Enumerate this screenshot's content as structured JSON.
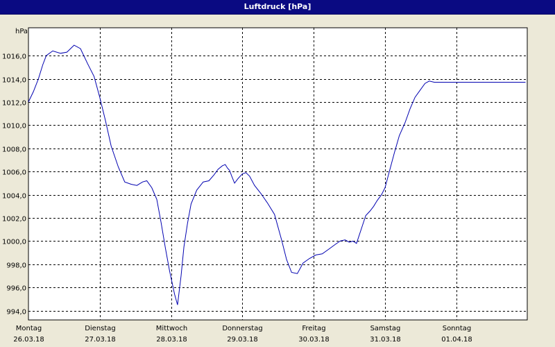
{
  "window": {
    "title": "Luftdruck [hPa]"
  },
  "chart_data": {
    "type": "line",
    "title": "Luftdruck [hPa]",
    "ylabel": "hPa",
    "xlabel": "",
    "ylim": [
      993.2,
      1018.4
    ],
    "yticks": [
      994.0,
      996.0,
      998.0,
      1000.0,
      1002.0,
      1004.0,
      1006.0,
      1008.0,
      1010.0,
      1012.0,
      1014.0,
      1016.0
    ],
    "ytick_labels": [
      "994,0",
      "996,0",
      "998,0",
      "1000,0",
      "1002,0",
      "1004,0",
      "1006,0",
      "1008,0",
      "1010,0",
      "1012,0",
      "1014,0",
      "1016,0"
    ],
    "xlim": [
      0,
      7
    ],
    "x_ticks": [
      {
        "day": "Montag",
        "date": "26.03.18",
        "x": 0
      },
      {
        "day": "Dienstag",
        "date": "27.03.18",
        "x": 1
      },
      {
        "day": "Mittwoch",
        "date": "28.03.18",
        "x": 2
      },
      {
        "day": "Donnerstag",
        "date": "29.03.18",
        "x": 3
      },
      {
        "day": "Freitag",
        "date": "30.03.18",
        "x": 4
      },
      {
        "day": "Samstag",
        "date": "31.03.18",
        "x": 5
      },
      {
        "day": "Sonntag",
        "date": "01.04.18",
        "x": 6
      }
    ],
    "grid": true,
    "series": [
      {
        "color": "#0000b0",
        "x": [
          0.0,
          0.07,
          0.14,
          0.2,
          0.25,
          0.34,
          0.45,
          0.54,
          0.64,
          0.73,
          0.83,
          0.92,
          1.0,
          1.08,
          1.16,
          1.26,
          1.35,
          1.44,
          1.52,
          1.6,
          1.66,
          1.73,
          1.8,
          1.86,
          1.92,
          1.98,
          2.05,
          2.09,
          2.14,
          2.18,
          2.23,
          2.28,
          2.36,
          2.45,
          2.53,
          2.6,
          2.66,
          2.72,
          2.76,
          2.79,
          2.82,
          2.85,
          2.89,
          2.94,
          3.0,
          3.05,
          3.1,
          3.17,
          3.26,
          3.35,
          3.45,
          3.55,
          3.62,
          3.69,
          3.77,
          3.85,
          3.94,
          4.03,
          4.12,
          4.21,
          4.3,
          4.37,
          4.44,
          4.5,
          4.55,
          4.6,
          4.67,
          4.73,
          4.79,
          4.84,
          4.89,
          4.95,
          5.0,
          5.06,
          5.13,
          5.2,
          5.28,
          5.35,
          5.42,
          5.49,
          5.56,
          5.62,
          5.69,
          5.76,
          5.83,
          5.87,
          5.93,
          5.98,
          6.03,
          6.1,
          6.18,
          6.25,
          6.31,
          6.36,
          6.42,
          6.48,
          6.54,
          6.59,
          6.65,
          6.71,
          6.76,
          6.82,
          6.88,
          6.93,
          6.97
        ],
        "values": [
          1012.0,
          1012.9,
          1014.0,
          1015.2,
          1016.0,
          1016.4,
          1016.2,
          1016.3,
          1016.9,
          1016.6,
          1015.3,
          1014.2,
          1012.4,
          1010.4,
          1008.2,
          1006.4,
          1005.1,
          1004.9,
          1004.8,
          1005.1,
          1005.2,
          1004.6,
          1003.6,
          1001.6,
          999.4,
          997.4,
          995.4,
          994.5,
          997.0,
          999.5,
          1001.5,
          1003.2,
          1004.4,
          1005.1,
          1005.2,
          1005.7,
          1006.2,
          1006.5,
          1006.6,
          1006.3,
          1006.1,
          1005.6,
          1005.0,
          1005.4,
          1005.8,
          1005.9,
          1005.6,
          1004.8,
          1004.1,
          1003.3,
          1002.3,
          1000.1,
          998.4,
          997.3,
          997.2,
          998.1,
          998.5,
          998.8,
          998.9,
          999.3,
          999.7,
          1000.0,
          1000.1,
          999.9,
          1000.0,
          999.8,
          1001.1,
          1002.2,
          1002.6,
          1003.0,
          1003.5,
          1004.0,
          1004.6,
          1006.0,
          1007.6,
          1009.1,
          1010.2,
          1011.4,
          1012.4,
          1013.0,
          1013.6,
          1013.8,
          1013.7,
          1013.7,
          1013.7,
          1013.7,
          1013.7,
          1013.7,
          1013.7,
          1013.7,
          1013.7,
          1013.7,
          1013.7,
          1013.7,
          1013.7,
          1013.7,
          1013.7,
          1013.7,
          1013.7,
          1013.7,
          1013.7,
          1013.7,
          1013.7,
          1013.7,
          1013.7
        ]
      }
    ]
  }
}
